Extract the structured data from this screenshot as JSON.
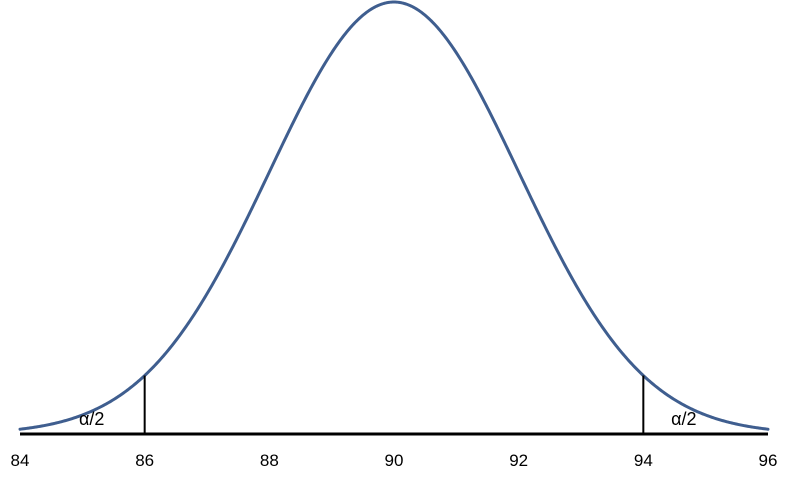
{
  "chart_data": {
    "type": "line",
    "title": "",
    "xlabel": "",
    "ylabel": "",
    "xlim": [
      84,
      96
    ],
    "x_ticks": [
      {
        "value": 84,
        "label": "84"
      },
      {
        "value": 86,
        "label": "86"
      },
      {
        "value": 88,
        "label": "88"
      },
      {
        "value": 90,
        "label": "90"
      },
      {
        "value": 92,
        "label": "92"
      },
      {
        "value": 94,
        "label": "94"
      },
      {
        "value": 96,
        "label": "96"
      }
    ],
    "y_axis_visible": false,
    "grid": false,
    "legend": "none",
    "distribution": {
      "kind": "normal",
      "mean": 90,
      "sd": 2
    },
    "x": [
      84,
      84.5,
      85,
      85.5,
      86,
      86.5,
      87,
      87.5,
      88,
      88.5,
      89,
      89.5,
      90,
      90.5,
      91,
      91.5,
      92,
      92.5,
      93,
      93.5,
      94,
      94.5,
      95,
      95.5,
      96
    ],
    "series": [
      {
        "y": [
          0.0022,
          0.0045,
          0.0088,
          0.0159,
          0.027,
          0.0431,
          0.0648,
          0.0913,
          0.121,
          0.1506,
          0.176,
          0.1933,
          0.1995,
          0.1933,
          0.176,
          0.1506,
          0.121,
          0.0913,
          0.0648,
          0.0431,
          0.027,
          0.0159,
          0.0088,
          0.0045,
          0.0022
        ],
        "color": "#3f5e8f"
      }
    ],
    "critical_lines": [
      86,
      94
    ],
    "annotations": [
      {
        "x": 85.15,
        "text": "α/2"
      },
      {
        "x": 94.65,
        "text": "α/2"
      }
    ],
    "curve_color": "#3f5e8f",
    "axis_color": "#000000"
  }
}
